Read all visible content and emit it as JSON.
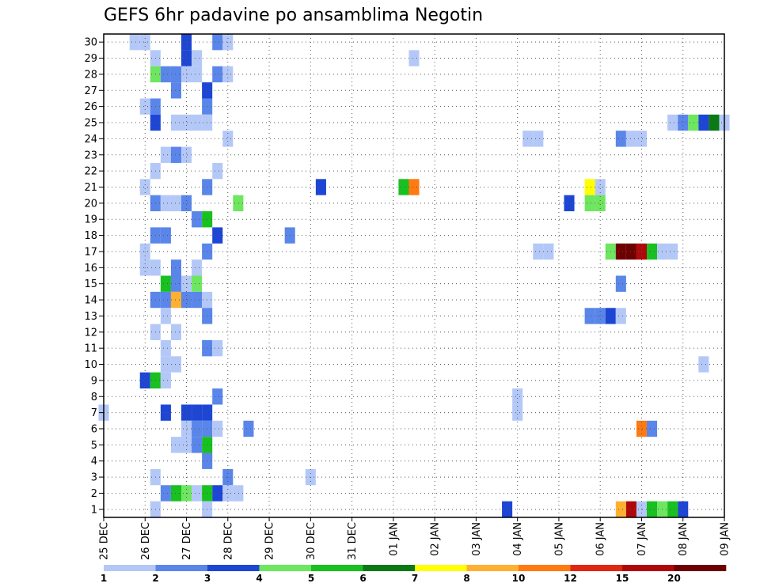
{
  "chart_data": {
    "type": "heatmap",
    "title": "GEFS 6hr padavine po ansamblima Negotin",
    "xlabel": "",
    "ylabel": "",
    "x_tick_labels": [
      "25 DEC",
      "26 DEC",
      "27 DEC",
      "28 DEC",
      "29 DEC",
      "30 DEC",
      "31 DEC",
      "01 JAN",
      "02 JAN",
      "03 JAN",
      "04 JAN",
      "05 JAN",
      "06 JAN",
      "07 JAN",
      "08 JAN",
      "09 JAN"
    ],
    "y_tick_labels": [
      "1",
      "2",
      "3",
      "4",
      "5",
      "6",
      "7",
      "8",
      "9",
      "10",
      "11",
      "12",
      "13",
      "14",
      "15",
      "16",
      "17",
      "18",
      "19",
      "20",
      "21",
      "22",
      "23",
      "24",
      "25",
      "26",
      "27",
      "28",
      "29",
      "30"
    ],
    "y_range": [
      0,
      30
    ],
    "grid": true,
    "colorbar": {
      "labels": [
        "1",
        "2",
        "3",
        "4",
        "5",
        "6",
        "7",
        "8",
        "10",
        "12",
        "15",
        "20"
      ],
      "colors": [
        "#b4c8f8",
        "#5a86ea",
        "#1e46d4",
        "#6ee660",
        "#18c020",
        "#0b7a14",
        "#ffff00",
        "#ffb030",
        "#ff7a10",
        "#e02810",
        "#b00808",
        "#6e0000"
      ]
    },
    "cells": [
      {
        "t": 3,
        "m": 30,
        "v": 1.5
      },
      {
        "t": 4,
        "m": 30,
        "v": 1.5
      },
      {
        "t": 8,
        "m": 30,
        "v": 3.5
      },
      {
        "t": 11,
        "m": 30,
        "v": 2.5
      },
      {
        "t": 12,
        "m": 30,
        "v": 1.5
      },
      {
        "t": 5,
        "m": 29,
        "v": 1.5
      },
      {
        "t": 8,
        "m": 29,
        "v": 3.5
      },
      {
        "t": 9,
        "m": 29,
        "v": 1.5
      },
      {
        "t": 30,
        "m": 29,
        "v": 1.5
      },
      {
        "t": 5,
        "m": 28,
        "v": 4.5
      },
      {
        "t": 6,
        "m": 28,
        "v": 2.5
      },
      {
        "t": 7,
        "m": 28,
        "v": 2.5
      },
      {
        "t": 8,
        "m": 28,
        "v": 1.5
      },
      {
        "t": 9,
        "m": 28,
        "v": 1.5
      },
      {
        "t": 11,
        "m": 28,
        "v": 2.5
      },
      {
        "t": 12,
        "m": 28,
        "v": 1.5
      },
      {
        "t": 7,
        "m": 27,
        "v": 2.5
      },
      {
        "t": 10,
        "m": 27,
        "v": 3.5
      },
      {
        "t": 4,
        "m": 26,
        "v": 1.5
      },
      {
        "t": 5,
        "m": 26,
        "v": 2.5
      },
      {
        "t": 10,
        "m": 26,
        "v": 2.5
      },
      {
        "t": 5,
        "m": 25,
        "v": 3.5
      },
      {
        "t": 7,
        "m": 25,
        "v": 1.5
      },
      {
        "t": 8,
        "m": 25,
        "v": 1.5
      },
      {
        "t": 9,
        "m": 25,
        "v": 1.5
      },
      {
        "t": 10,
        "m": 25,
        "v": 1.5
      },
      {
        "t": 55,
        "m": 25,
        "v": 1.5
      },
      {
        "t": 56,
        "m": 25,
        "v": 2.5
      },
      {
        "t": 57,
        "m": 25,
        "v": 4.5
      },
      {
        "t": 58,
        "m": 25,
        "v": 3.5
      },
      {
        "t": 59,
        "m": 25,
        "v": 6.5
      },
      {
        "t": 60,
        "m": 25,
        "v": 1.5
      },
      {
        "t": 12,
        "m": 24,
        "v": 1.5
      },
      {
        "t": 41,
        "m": 24,
        "v": 1.5
      },
      {
        "t": 42,
        "m": 24,
        "v": 1.5
      },
      {
        "t": 50,
        "m": 24,
        "v": 2.5
      },
      {
        "t": 51,
        "m": 24,
        "v": 1.5
      },
      {
        "t": 52,
        "m": 24,
        "v": 1.5
      },
      {
        "t": 6,
        "m": 23,
        "v": 1.5
      },
      {
        "t": 7,
        "m": 23,
        "v": 2.5
      },
      {
        "t": 8,
        "m": 23,
        "v": 1.5
      },
      {
        "t": 5,
        "m": 22,
        "v": 1.5
      },
      {
        "t": 11,
        "m": 22,
        "v": 1.5
      },
      {
        "t": 4,
        "m": 21,
        "v": 1.5
      },
      {
        "t": 10,
        "m": 21,
        "v": 2.5
      },
      {
        "t": 21,
        "m": 21,
        "v": 3.5
      },
      {
        "t": 29,
        "m": 21,
        "v": 5.5
      },
      {
        "t": 30,
        "m": 21,
        "v": 11
      },
      {
        "t": 47,
        "m": 21,
        "v": 7.5
      },
      {
        "t": 48,
        "m": 21,
        "v": 1.5
      },
      {
        "t": 5,
        "m": 20,
        "v": 2.5
      },
      {
        "t": 6,
        "m": 20,
        "v": 1.5
      },
      {
        "t": 7,
        "m": 20,
        "v": 1.5
      },
      {
        "t": 8,
        "m": 20,
        "v": 2.5
      },
      {
        "t": 13,
        "m": 20,
        "v": 4.5
      },
      {
        "t": 45,
        "m": 20,
        "v": 3.5
      },
      {
        "t": 47,
        "m": 20,
        "v": 4.5
      },
      {
        "t": 48,
        "m": 20,
        "v": 4.5
      },
      {
        "t": 9,
        "m": 19,
        "v": 2.5
      },
      {
        "t": 10,
        "m": 19,
        "v": 5.5
      },
      {
        "t": 11,
        "m": 18,
        "v": 3.5
      },
      {
        "t": 5,
        "m": 18,
        "v": 2.5
      },
      {
        "t": 6,
        "m": 18,
        "v": 2.5
      },
      {
        "t": 18,
        "m": 18,
        "v": 2.5
      },
      {
        "t": 4,
        "m": 17,
        "v": 1.5
      },
      {
        "t": 10,
        "m": 17,
        "v": 2.5
      },
      {
        "t": 42,
        "m": 17,
        "v": 1.5
      },
      {
        "t": 43,
        "m": 17,
        "v": 1.5
      },
      {
        "t": 49,
        "m": 17,
        "v": 4.5
      },
      {
        "t": 50,
        "m": 17,
        "v": 25
      },
      {
        "t": 51,
        "m": 17,
        "v": 25
      },
      {
        "t": 52,
        "m": 17,
        "v": 17
      },
      {
        "t": 53,
        "m": 17,
        "v": 5.5
      },
      {
        "t": 54,
        "m": 17,
        "v": 1.5
      },
      {
        "t": 55,
        "m": 17,
        "v": 1.5
      },
      {
        "t": 4,
        "m": 16,
        "v": 1.5
      },
      {
        "t": 5,
        "m": 16,
        "v": 1.5
      },
      {
        "t": 7,
        "m": 16,
        "v": 2.5
      },
      {
        "t": 9,
        "m": 16,
        "v": 1.5
      },
      {
        "t": 6,
        "m": 15,
        "v": 5.5
      },
      {
        "t": 7,
        "m": 15,
        "v": 2.5
      },
      {
        "t": 8,
        "m": 15,
        "v": 1.5
      },
      {
        "t": 9,
        "m": 15,
        "v": 4.5
      },
      {
        "t": 50,
        "m": 15,
        "v": 2.5
      },
      {
        "t": 5,
        "m": 14,
        "v": 2.5
      },
      {
        "t": 6,
        "m": 14,
        "v": 2.5
      },
      {
        "t": 7,
        "m": 14,
        "v": 9
      },
      {
        "t": 8,
        "m": 14,
        "v": 2.5
      },
      {
        "t": 9,
        "m": 14,
        "v": 2.5
      },
      {
        "t": 10,
        "m": 14,
        "v": 1.5
      },
      {
        "t": 6,
        "m": 13,
        "v": 1.5
      },
      {
        "t": 10,
        "m": 13,
        "v": 2.5
      },
      {
        "t": 47,
        "m": 13,
        "v": 2.5
      },
      {
        "t": 48,
        "m": 13,
        "v": 2.5
      },
      {
        "t": 49,
        "m": 13,
        "v": 3.5
      },
      {
        "t": 50,
        "m": 13,
        "v": 1.5
      },
      {
        "t": 5,
        "m": 12,
        "v": 1.5
      },
      {
        "t": 7,
        "m": 12,
        "v": 1.5
      },
      {
        "t": 6,
        "m": 11,
        "v": 1.5
      },
      {
        "t": 10,
        "m": 11,
        "v": 2.5
      },
      {
        "t": 11,
        "m": 11,
        "v": 1.5
      },
      {
        "t": 6,
        "m": 10,
        "v": 1.5
      },
      {
        "t": 7,
        "m": 10,
        "v": 1.5
      },
      {
        "t": 58,
        "m": 10,
        "v": 1.5
      },
      {
        "t": 4,
        "m": 9,
        "v": 3.5
      },
      {
        "t": 5,
        "m": 9,
        "v": 5.5
      },
      {
        "t": 6,
        "m": 9,
        "v": 1.5
      },
      {
        "t": 11,
        "m": 8,
        "v": 2.5
      },
      {
        "t": 40,
        "m": 8,
        "v": 1.5
      },
      {
        "t": 0,
        "m": 7,
        "v": 1.5
      },
      {
        "t": 6,
        "m": 7,
        "v": 3.5
      },
      {
        "t": 8,
        "m": 7,
        "v": 3.5
      },
      {
        "t": 9,
        "m": 7,
        "v": 3.5
      },
      {
        "t": 10,
        "m": 7,
        "v": 3.5
      },
      {
        "t": 40,
        "m": 7,
        "v": 1.5
      },
      {
        "t": 8,
        "m": 6,
        "v": 1.5
      },
      {
        "t": 9,
        "m": 6,
        "v": 2.5
      },
      {
        "t": 10,
        "m": 6,
        "v": 2.5
      },
      {
        "t": 11,
        "m": 6,
        "v": 1.5
      },
      {
        "t": 14,
        "m": 6,
        "v": 2.5
      },
      {
        "t": 52,
        "m": 6,
        "v": 11
      },
      {
        "t": 53,
        "m": 6,
        "v": 2.5
      },
      {
        "t": 7,
        "m": 5,
        "v": 1.5
      },
      {
        "t": 8,
        "m": 5,
        "v": 1.5
      },
      {
        "t": 9,
        "m": 5,
        "v": 2.5
      },
      {
        "t": 10,
        "m": 5,
        "v": 5.5
      },
      {
        "t": 10,
        "m": 4,
        "v": 2.5
      },
      {
        "t": 5,
        "m": 3,
        "v": 1.5
      },
      {
        "t": 12,
        "m": 3,
        "v": 2.5
      },
      {
        "t": 20,
        "m": 3,
        "v": 1.5
      },
      {
        "t": 6,
        "m": 2,
        "v": 2.5
      },
      {
        "t": 7,
        "m": 2,
        "v": 5.5
      },
      {
        "t": 8,
        "m": 2,
        "v": 4.5
      },
      {
        "t": 9,
        "m": 2,
        "v": 1.5
      },
      {
        "t": 10,
        "m": 2,
        "v": 5.5
      },
      {
        "t": 11,
        "m": 2,
        "v": 3.5
      },
      {
        "t": 12,
        "m": 2,
        "v": 1.5
      },
      {
        "t": 13,
        "m": 2,
        "v": 1.5
      },
      {
        "t": 5,
        "m": 1,
        "v": 1.5
      },
      {
        "t": 10,
        "m": 1,
        "v": 1.5
      },
      {
        "t": 39,
        "m": 1,
        "v": 3.5
      },
      {
        "t": 50,
        "m": 1,
        "v": 9
      },
      {
        "t": 51,
        "m": 1,
        "v": 17
      },
      {
        "t": 52,
        "m": 1,
        "v": 1.5
      },
      {
        "t": 53,
        "m": 1,
        "v": 5.5
      },
      {
        "t": 54,
        "m": 1,
        "v": 4.5
      },
      {
        "t": 55,
        "m": 1,
        "v": 5.5
      },
      {
        "t": 56,
        "m": 1,
        "v": 3.5
      }
    ]
  }
}
